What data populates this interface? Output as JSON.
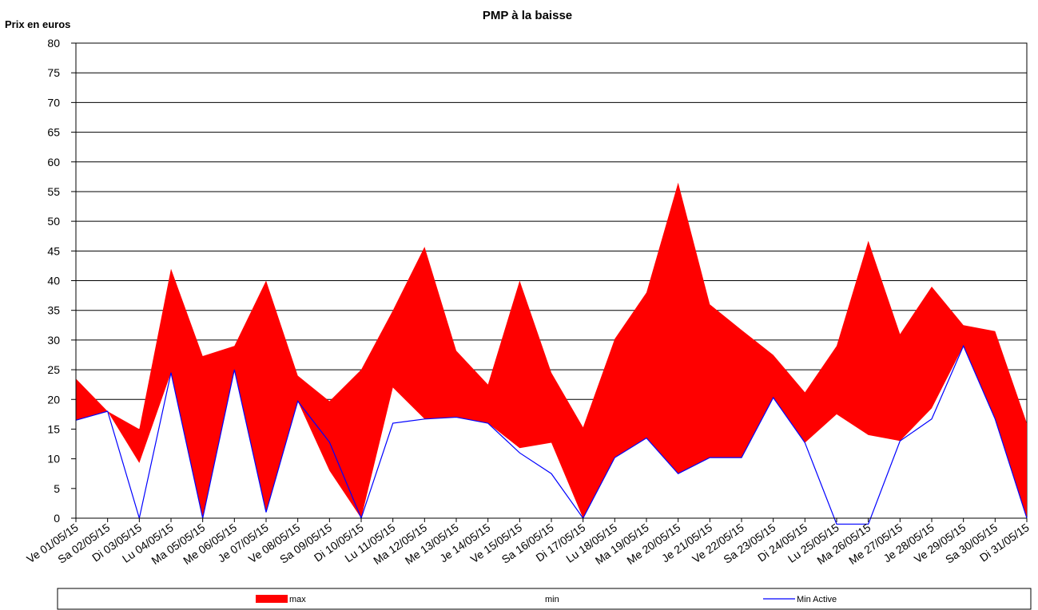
{
  "chart_data": {
    "type": "area",
    "title": "PMP à la baisse",
    "y_label": "Prix en euros",
    "categories": [
      "Ve 01/05/15",
      "Sa 02/05/15",
      "Di 03/05/15",
      "Lu 04/05/15",
      "Ma 05/05/15",
      "Me 06/05/15",
      "Je 07/05/15",
      "Ve 08/05/15",
      "Sa 09/05/15",
      "Di 10/05/15",
      "Lu 11/05/15",
      "Ma 12/05/15",
      "Me 13/05/15",
      "Je 14/05/15",
      "Ve 15/05/15",
      "Sa 16/05/15",
      "Di 17/05/15",
      "Lu 18/05/15",
      "Ma 19/05/15",
      "Me 20/05/15",
      "Je 21/05/15",
      "Ve 22/05/15",
      "Sa 23/05/15",
      "Di 24/05/15",
      "Lu 25/05/15",
      "Ma 26/05/15",
      "Me 27/05/15",
      "Je 28/05/15",
      "Ve 29/05/15",
      "Sa 30/05/15",
      "Di 31/05/15"
    ],
    "series": [
      {
        "name": "max",
        "color": "#ff0000",
        "style": "area",
        "values": [
          23.5,
          18,
          15,
          42,
          27.3,
          29,
          40,
          24,
          19.7,
          25,
          35,
          45.7,
          28.2,
          22.5,
          40,
          24.5,
          15.3,
          30.2,
          38,
          56.5,
          36,
          31.7,
          27.5,
          21.2,
          29,
          46.7,
          31,
          39,
          32.5,
          31.5,
          16
        ]
      },
      {
        "name": "min",
        "color": "#ffffff",
        "style": "area",
        "values": [
          16.5,
          18,
          9.3,
          24.5,
          0,
          25,
          1,
          19.7,
          8,
          0,
          22,
          16.7,
          17,
          16,
          11.8,
          12.7,
          0,
          10.2,
          13.5,
          7.5,
          10.2,
          10.2,
          20.3,
          12.7,
          17.5,
          14,
          13,
          18.5,
          29,
          16.7,
          0
        ]
      },
      {
        "name": "Min Active",
        "color": "#0000ff",
        "style": "line",
        "values": [
          16.5,
          18,
          0,
          24.5,
          0,
          25,
          1,
          19.7,
          12.8,
          0,
          16,
          16.7,
          17,
          16,
          11,
          7.5,
          0,
          10.2,
          13.5,
          7.5,
          10.2,
          10.2,
          20.3,
          12.7,
          -1,
          -1,
          13,
          16.7,
          29,
          16.7,
          0
        ]
      }
    ],
    "ylim": [
      0,
      80
    ],
    "yticks": [
      0,
      5,
      10,
      15,
      20,
      25,
      30,
      35,
      40,
      45,
      50,
      55,
      60,
      65,
      70,
      75,
      80
    ],
    "grid": true
  }
}
